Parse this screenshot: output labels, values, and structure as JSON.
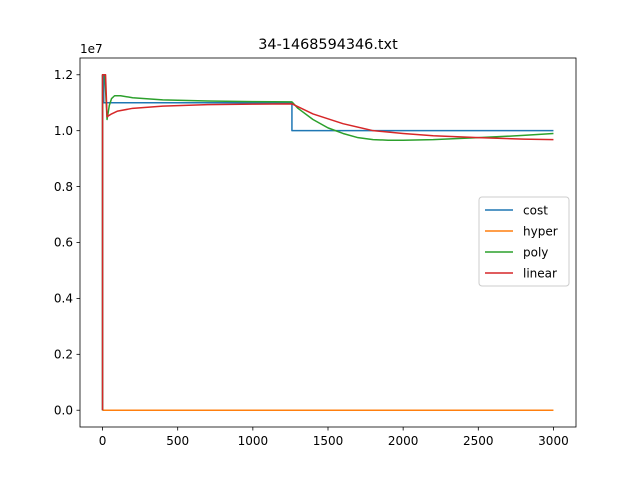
{
  "chart_data": {
    "type": "line",
    "title": "34-1468594346.txt",
    "xlabel": "",
    "ylabel": "",
    "y_scale_note": "1e7",
    "xlim": [
      -150,
      3150
    ],
    "ylim": [
      -0.06,
      1.26
    ],
    "x_ticks": [
      0,
      500,
      1000,
      1500,
      2000,
      2500,
      3000
    ],
    "x_tick_labels": [
      "0",
      "500",
      "1000",
      "1500",
      "2000",
      "2500",
      "3000"
    ],
    "y_ticks": [
      0.0,
      0.2,
      0.4,
      0.6,
      0.8,
      1.0,
      1.2
    ],
    "y_tick_labels": [
      "0.0",
      "0.2",
      "0.4",
      "0.6",
      "0.8",
      "1.0",
      "1.2"
    ],
    "grid": false,
    "legend_position": "center-right",
    "series": [
      {
        "name": "cost",
        "color": "#1f77b4",
        "points": [
          [
            0,
            0
          ],
          [
            0,
            1.2
          ],
          [
            8,
            1.2
          ],
          [
            8,
            1.1
          ],
          [
            1260,
            1.1
          ],
          [
            1260,
            1.0
          ],
          [
            3000,
            1.0
          ]
        ]
      },
      {
        "name": "hyper",
        "color": "#ff7f0e",
        "points": [
          [
            0,
            0
          ],
          [
            3000,
            0
          ]
        ]
      },
      {
        "name": "poly",
        "color": "#2ca02c",
        "points": [
          [
            0,
            0
          ],
          [
            0,
            1.2
          ],
          [
            15,
            1.2
          ],
          [
            30,
            1.04
          ],
          [
            45,
            1.09
          ],
          [
            60,
            1.115
          ],
          [
            80,
            1.125
          ],
          [
            120,
            1.125
          ],
          [
            200,
            1.118
          ],
          [
            400,
            1.11
          ],
          [
            700,
            1.106
          ],
          [
            1000,
            1.104
          ],
          [
            1260,
            1.103
          ],
          [
            1300,
            1.08
          ],
          [
            1400,
            1.04
          ],
          [
            1500,
            1.01
          ],
          [
            1600,
            0.99
          ],
          [
            1700,
            0.975
          ],
          [
            1800,
            0.968
          ],
          [
            1900,
            0.966
          ],
          [
            2000,
            0.966
          ],
          [
            2200,
            0.968
          ],
          [
            2500,
            0.975
          ],
          [
            2800,
            0.983
          ],
          [
            3000,
            0.99
          ]
        ]
      },
      {
        "name": "linear",
        "color": "#d62728",
        "points": [
          [
            0,
            0
          ],
          [
            0,
            1.2
          ],
          [
            20,
            1.2
          ],
          [
            30,
            1.05
          ],
          [
            60,
            1.06
          ],
          [
            100,
            1.07
          ],
          [
            200,
            1.08
          ],
          [
            400,
            1.088
          ],
          [
            700,
            1.093
          ],
          [
            1000,
            1.095
          ],
          [
            1260,
            1.096
          ],
          [
            1400,
            1.06
          ],
          [
            1600,
            1.025
          ],
          [
            1800,
            1.0
          ],
          [
            2000,
            0.99
          ],
          [
            2200,
            0.982
          ],
          [
            2500,
            0.975
          ],
          [
            2800,
            0.97
          ],
          [
            3000,
            0.968
          ]
        ]
      }
    ]
  }
}
